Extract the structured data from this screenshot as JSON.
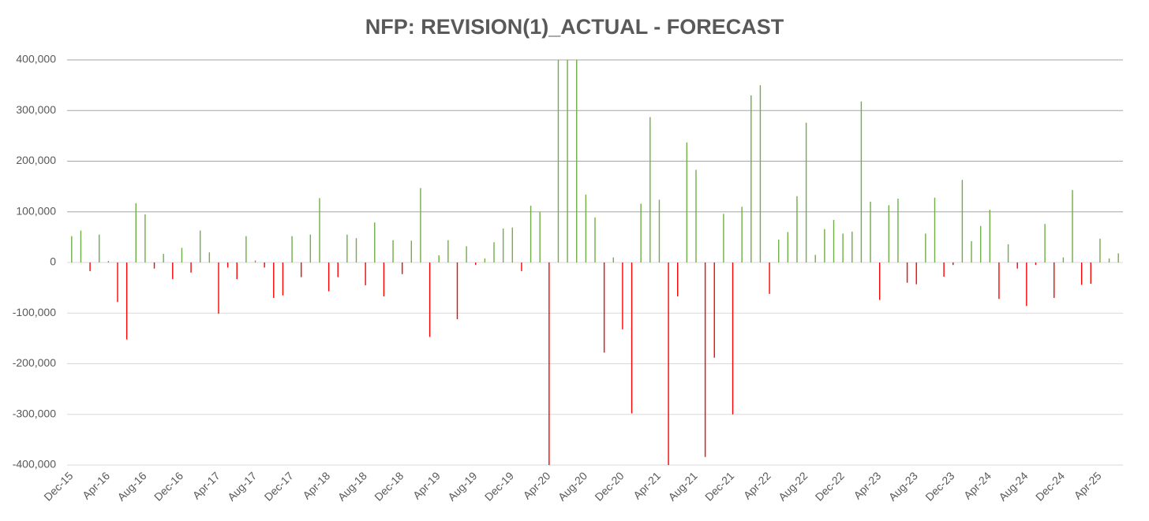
{
  "chart_data": {
    "type": "bar",
    "title": "NFP: REVISION(1)_ACTUAL - FORECAST",
    "categories": [
      "Dec-15",
      null,
      null,
      null,
      "Apr-16",
      null,
      null,
      null,
      "Aug-16",
      null,
      null,
      null,
      "Dec-16",
      null,
      null,
      null,
      "Apr-17",
      null,
      null,
      null,
      "Aug-17",
      null,
      null,
      null,
      "Dec-17",
      null,
      null,
      null,
      "Apr-18",
      null,
      null,
      null,
      "Aug-18",
      null,
      null,
      null,
      "Dec-18",
      null,
      null,
      null,
      "Apr-19",
      null,
      null,
      null,
      "Aug-19",
      null,
      null,
      null,
      "Dec-19",
      null,
      null,
      null,
      "Apr-20",
      null,
      null,
      null,
      "Aug-20",
      null,
      null,
      null,
      "Dec-20",
      null,
      null,
      null,
      "Apr-21",
      null,
      null,
      null,
      "Aug-21",
      null,
      null,
      null,
      "Dec-21",
      null,
      null,
      null,
      "Apr-22",
      null,
      null,
      null,
      "Aug-22",
      null,
      null,
      null,
      "Dec-22",
      null,
      null,
      null,
      "Apr-23",
      null,
      null,
      null,
      "Aug-23",
      null,
      null,
      null,
      "Dec-23",
      null,
      null,
      null,
      "Apr-24",
      null,
      null,
      null,
      "Aug-24",
      null,
      null,
      null,
      "Dec-24",
      null,
      null,
      null,
      "Apr-25",
      null,
      null
    ],
    "values": [
      52000,
      63000,
      -17000,
      55000,
      3000,
      -78000,
      -152000,
      117000,
      95000,
      -12000,
      17000,
      -33000,
      29000,
      -20000,
      63000,
      20000,
      -101000,
      -10000,
      -33000,
      52000,
      4000,
      -10000,
      -70000,
      -65000,
      52000,
      -29000,
      55000,
      127000,
      -57000,
      -29000,
      55000,
      48000,
      -45000,
      79000,
      -67000,
      44000,
      -23000,
      43000,
      147000,
      -147000,
      14000,
      44000,
      -112000,
      32000,
      -5000,
      8000,
      40000,
      67000,
      69000,
      -17000,
      112000,
      100000,
      -400000,
      400000,
      400000,
      400000,
      134000,
      89000,
      -178000,
      10000,
      -132000,
      -298000,
      116000,
      287000,
      124000,
      -400000,
      -67000,
      237000,
      183000,
      -384000,
      -188000,
      96000,
      -300000,
      110000,
      330000,
      350000,
      -62000,
      45000,
      60000,
      131000,
      276000,
      15000,
      66000,
      84000,
      57000,
      61000,
      318000,
      120000,
      -74000,
      113000,
      126000,
      -40000,
      -43000,
      57000,
      128000,
      -28000,
      -5000,
      163000,
      42000,
      72000,
      104000,
      -72000,
      36000,
      -12000,
      -86000,
      -5000,
      76000,
      -70000,
      10000,
      143000,
      -44000,
      -42000,
      47000,
      8000,
      18000
    ],
    "colors": {
      "positive": "#70ad47",
      "negative": "#ff0000"
    },
    "ylim": [
      -400000,
      400000
    ],
    "yticks": [
      {
        "value": -400000,
        "label": "-400,000"
      },
      {
        "value": -300000,
        "label": "-300,000"
      },
      {
        "value": -200000,
        "label": "-200,000"
      },
      {
        "value": -100000,
        "label": "-100,000"
      },
      0,
      {
        "value": 100000,
        "label": "100,000"
      },
      {
        "value": 200000,
        "label": "200,000"
      },
      {
        "value": 300000,
        "label": "300,000"
      },
      {
        "value": 400000,
        "label": "400,000"
      }
    ],
    "grid": true
  }
}
